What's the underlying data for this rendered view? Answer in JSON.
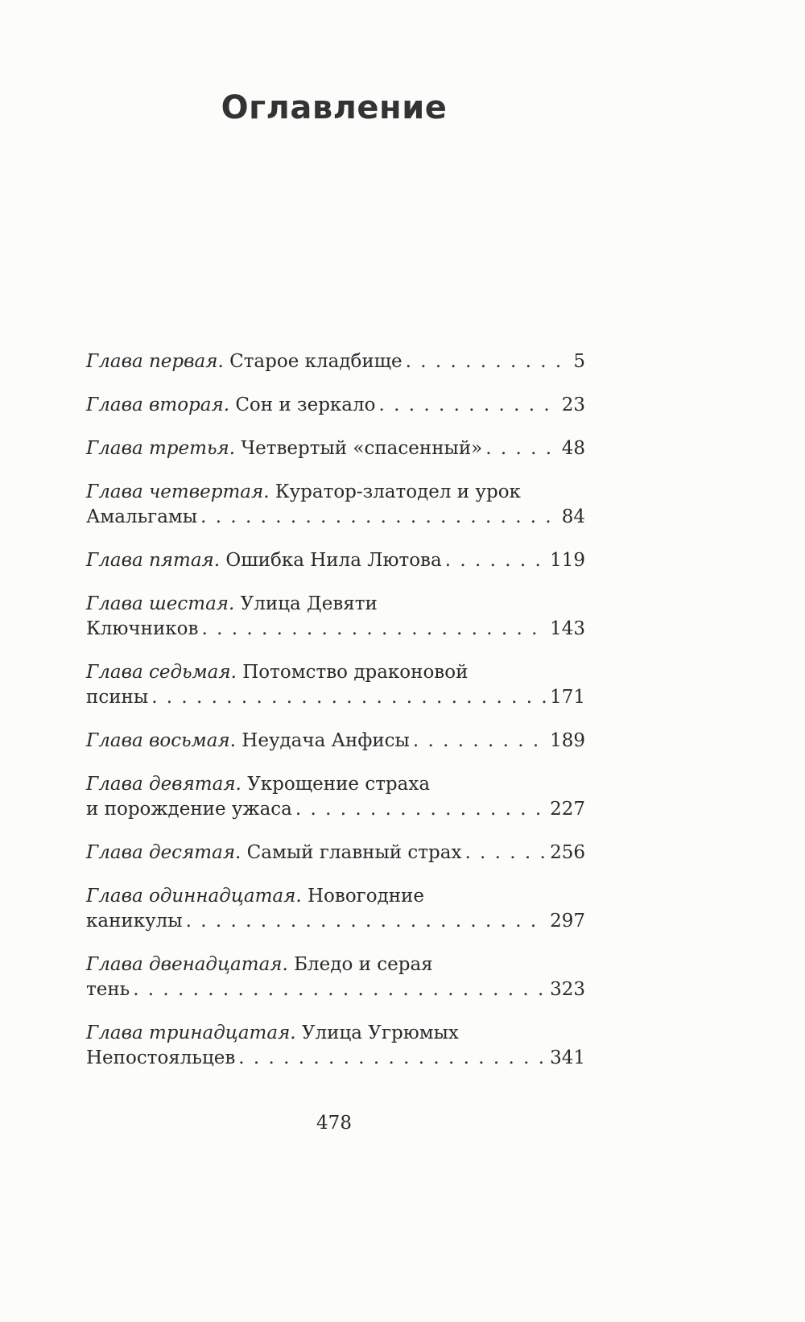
{
  "title": "Оглавление",
  "entries": [
    {
      "label": "Глава первая.",
      "title_lines": [
        "Старое кладбище"
      ],
      "page": "5"
    },
    {
      "label": "Глава вторая.",
      "title_lines": [
        "Сон и зеркало"
      ],
      "page": "23"
    },
    {
      "label": "Глава третья.",
      "title_lines": [
        "Четвертый «спасенный»"
      ],
      "page": "48"
    },
    {
      "label": "Глава четвертая.",
      "title_lines": [
        "Куратор-златодел и урок",
        "Амальгамы"
      ],
      "page": "84"
    },
    {
      "label": "Глава пятая.",
      "title_lines": [
        "Ошибка Нила Лютова"
      ],
      "page": "119"
    },
    {
      "label": "Глава шестая.",
      "title_lines": [
        "Улица Девяти",
        "Ключников"
      ],
      "page": "143"
    },
    {
      "label": "Глава седьмая.",
      "title_lines": [
        "Потомство драконовой",
        "псины"
      ],
      "page": "171"
    },
    {
      "label": "Глава восьмая.",
      "title_lines": [
        "Неудача Анфисы"
      ],
      "page": "189"
    },
    {
      "label": "Глава девятая.",
      "title_lines": [
        "Укрощение страха",
        "и порождение ужаса"
      ],
      "page": "227"
    },
    {
      "label": "Глава десятая.",
      "title_lines": [
        "Самый главный страх"
      ],
      "page": "256"
    },
    {
      "label": "Глава одиннадцатая.",
      "title_lines": [
        "Новогодние",
        "каникулы"
      ],
      "page": "297"
    },
    {
      "label": "Глава двенадцатая.",
      "title_lines": [
        "Бледо и серая",
        "тень"
      ],
      "page": "323"
    },
    {
      "label": "Глава тринадцатая.",
      "title_lines": [
        "Улица Угрюмых",
        "Непостояльцев"
      ],
      "page": "341"
    }
  ],
  "page_number": "478"
}
